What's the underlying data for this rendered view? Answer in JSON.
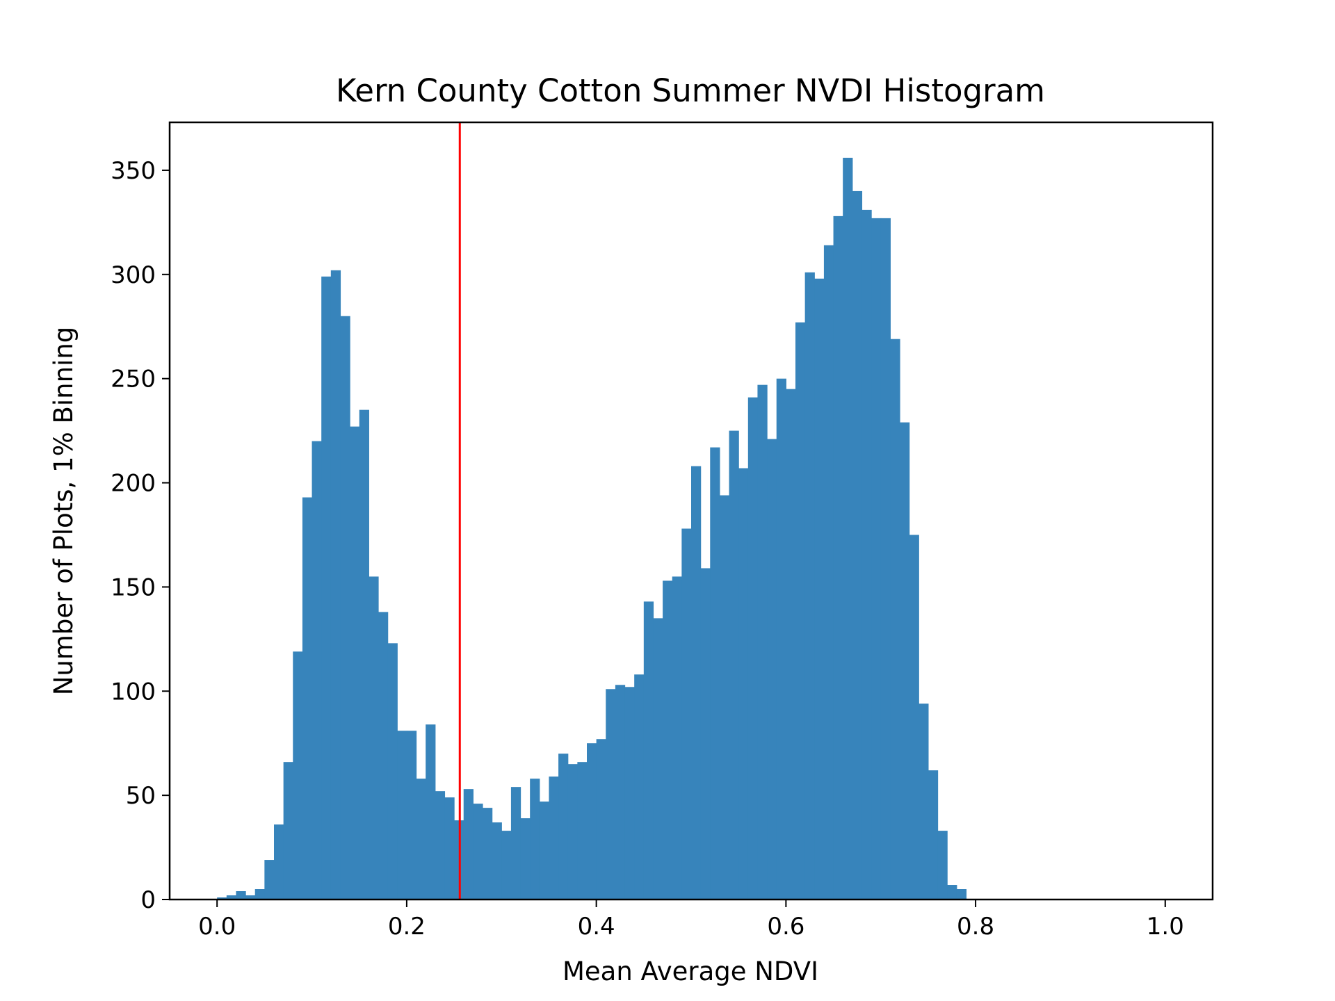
{
  "chart_data": {
    "type": "bar",
    "title": "Kern County Cotton Summer NVDI Histogram",
    "xlabel": "Mean Average NDVI",
    "ylabel": "Number of Plots, 1% Binning",
    "xlim": [
      -0.05,
      1.05
    ],
    "ylim": [
      0,
      373
    ],
    "xticks": [
      "0.0",
      "0.2",
      "0.4",
      "0.6",
      "0.8",
      "1.0"
    ],
    "yticks": [
      "0",
      "50",
      "100",
      "150",
      "200",
      "250",
      "300",
      "350"
    ],
    "bin_width": 0.01,
    "bin_start": 0.0,
    "counts": [
      1,
      2,
      4,
      2,
      5,
      19,
      36,
      66,
      119,
      193,
      220,
      299,
      302,
      280,
      227,
      235,
      155,
      138,
      123,
      81,
      81,
      58,
      84,
      52,
      49,
      38,
      53,
      46,
      44,
      37,
      33,
      54,
      39,
      58,
      47,
      59,
      70,
      65,
      66,
      75,
      77,
      101,
      103,
      102,
      108,
      143,
      135,
      153,
      155,
      178,
      208,
      159,
      217,
      194,
      225,
      207,
      241,
      247,
      221,
      250,
      245,
      277,
      301,
      298,
      314,
      328,
      356,
      340,
      331,
      327,
      327,
      269,
      229,
      175,
      94,
      62,
      33,
      7,
      5
    ],
    "threshold_line": 0.256,
    "bar_color": "#3784bb",
    "line_color": "#ff0000",
    "grid": false,
    "legend": false
  }
}
